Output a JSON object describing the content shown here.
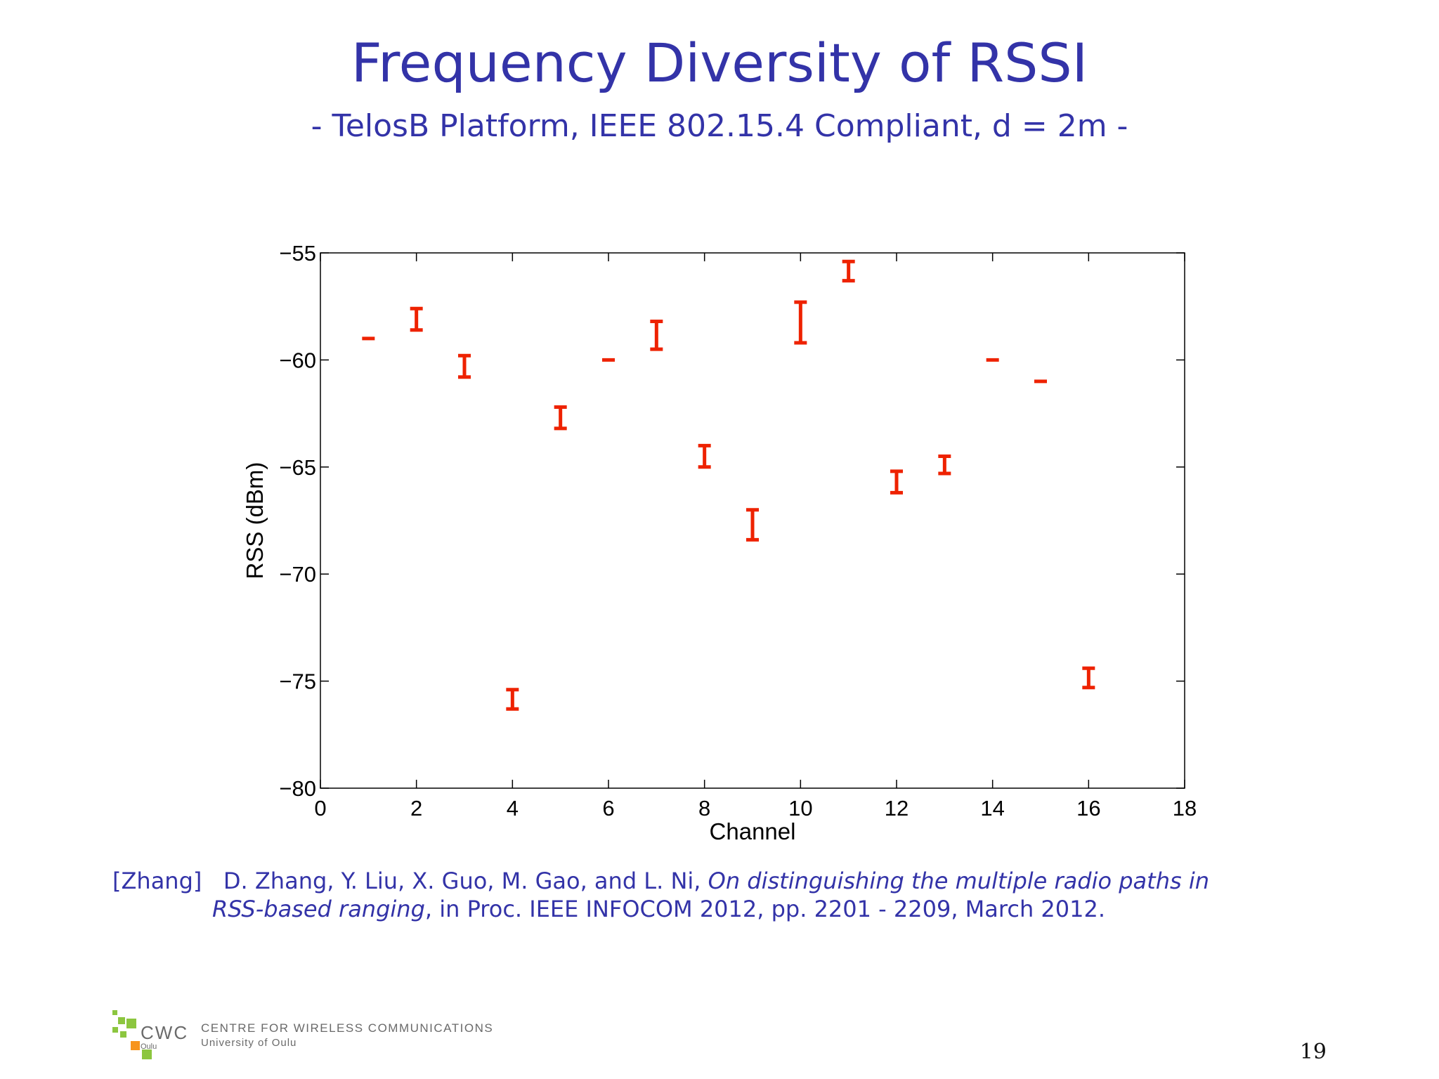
{
  "slide": {
    "title": "Frequency Diversity of RSSI",
    "subtitle": "- TelosB Platform, IEEE 802.15.4 Compliant, d = 2m -",
    "page_number": "19"
  },
  "citation": {
    "tag": "[Zhang]",
    "authors": "D. Zhang, Y. Liu, X. Guo, M. Gao, and L. Ni,",
    "title_part1": "On distinguishing the multiple radio paths in",
    "title_part2": "RSS-based ranging",
    "venue": ", in Proc. IEEE INFOCOM 2012, pp. 2201 - 2209, March 2012."
  },
  "footer": {
    "logo_text": "CWC",
    "logo_sub": "Oulu",
    "org_name": "CENTRE FOR WIRELESS COMMUNICATIONS",
    "org_sub": "University of Oulu",
    "logo_color": "#8cc63f",
    "logo_accent": "#f7941d"
  },
  "colors": {
    "title": "#3333a8",
    "errorbar": "#ee2200"
  },
  "chart_data": {
    "type": "scatter",
    "xlabel": "Channel",
    "ylabel": "RSS (dBm)",
    "xlim": [
      0,
      18
    ],
    "ylim": [
      -80,
      -55
    ],
    "xticks": [
      0,
      2,
      4,
      6,
      8,
      10,
      12,
      14,
      16,
      18
    ],
    "xtick_labels": [
      "0",
      "2",
      "4",
      "6",
      "8",
      "10",
      "12",
      "14",
      "16",
      "18"
    ],
    "yticks": [
      -55,
      -60,
      -65,
      -70,
      -75,
      -80
    ],
    "ytick_labels": [
      "−55",
      "−60",
      "−65",
      "−70",
      "−75",
      "−80"
    ],
    "grid": false,
    "points": [
      {
        "x": 1,
        "low": -59.0,
        "high": -59.0
      },
      {
        "x": 2,
        "low": -58.6,
        "high": -57.6
      },
      {
        "x": 3,
        "low": -60.8,
        "high": -59.8
      },
      {
        "x": 4,
        "low": -76.3,
        "high": -75.4
      },
      {
        "x": 5,
        "low": -63.2,
        "high": -62.2
      },
      {
        "x": 6,
        "low": -60.0,
        "high": -60.0
      },
      {
        "x": 7,
        "low": -59.5,
        "high": -58.2
      },
      {
        "x": 8,
        "low": -65.0,
        "high": -64.0
      },
      {
        "x": 9,
        "low": -68.4,
        "high": -67.0
      },
      {
        "x": 10,
        "low": -59.2,
        "high": -57.3
      },
      {
        "x": 11,
        "low": -56.3,
        "high": -55.4
      },
      {
        "x": 12,
        "low": -66.2,
        "high": -65.2
      },
      {
        "x": 13,
        "low": -65.3,
        "high": -64.5
      },
      {
        "x": 14,
        "low": -60.0,
        "high": -60.0
      },
      {
        "x": 15,
        "low": -61.0,
        "high": -61.0
      },
      {
        "x": 16,
        "low": -75.3,
        "high": -74.4
      }
    ]
  }
}
